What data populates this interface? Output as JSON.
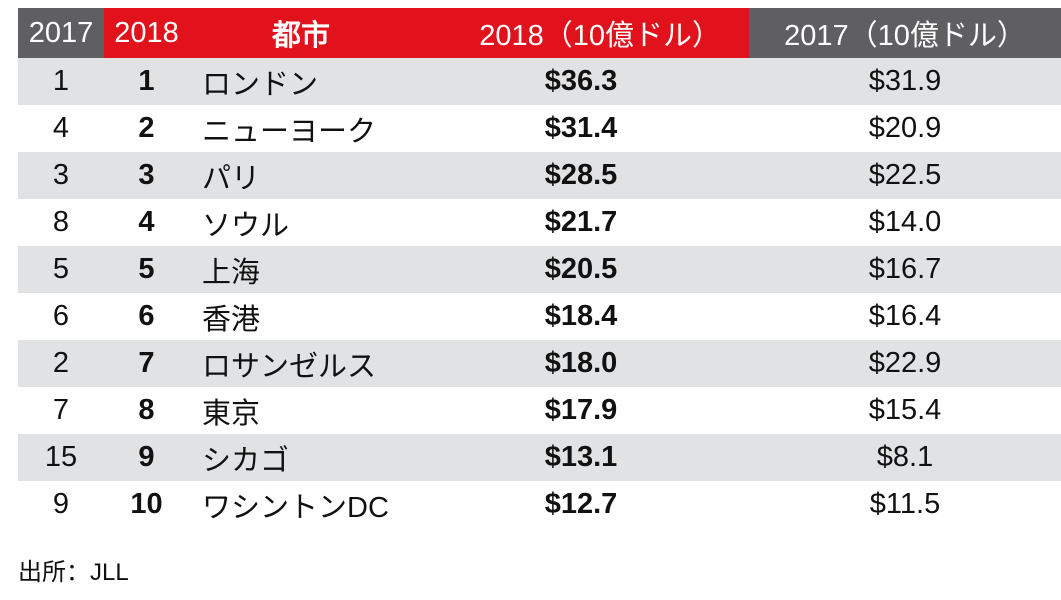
{
  "chart_data": {
    "type": "table",
    "columns": [
      "2017",
      "2018",
      "都市",
      "2018（10億ドル）",
      "2017（10億ドル）"
    ],
    "rows": [
      [
        "1",
        "1",
        "ロンドン",
        "$36.3",
        "$31.9"
      ],
      [
        "4",
        "2",
        "ニューヨーク",
        "$31.4",
        "$20.9"
      ],
      [
        "3",
        "3",
        "パリ",
        "$28.5",
        "$22.5"
      ],
      [
        "8",
        "4",
        "ソウル",
        "$21.7",
        "$14.0"
      ],
      [
        "5",
        "5",
        "上海",
        "$20.5",
        "$16.7"
      ],
      [
        "6",
        "6",
        "香港",
        "$18.4",
        "$16.4"
      ],
      [
        "2",
        "7",
        "ロサンゼルス",
        "$18.0",
        "$22.9"
      ],
      [
        "7",
        "8",
        "東京",
        "$17.9",
        "$15.4"
      ],
      [
        "15",
        "9",
        "シカゴ",
        "$13.1",
        "$8.1"
      ],
      [
        "9",
        "10",
        "ワシントンDC",
        "$12.7",
        "$11.5"
      ]
    ],
    "source": "出所：JLL"
  },
  "colors": {
    "header_gray": "#5f5f62",
    "header_red": "#e1121b",
    "row_shade": "#e1e2e4"
  }
}
